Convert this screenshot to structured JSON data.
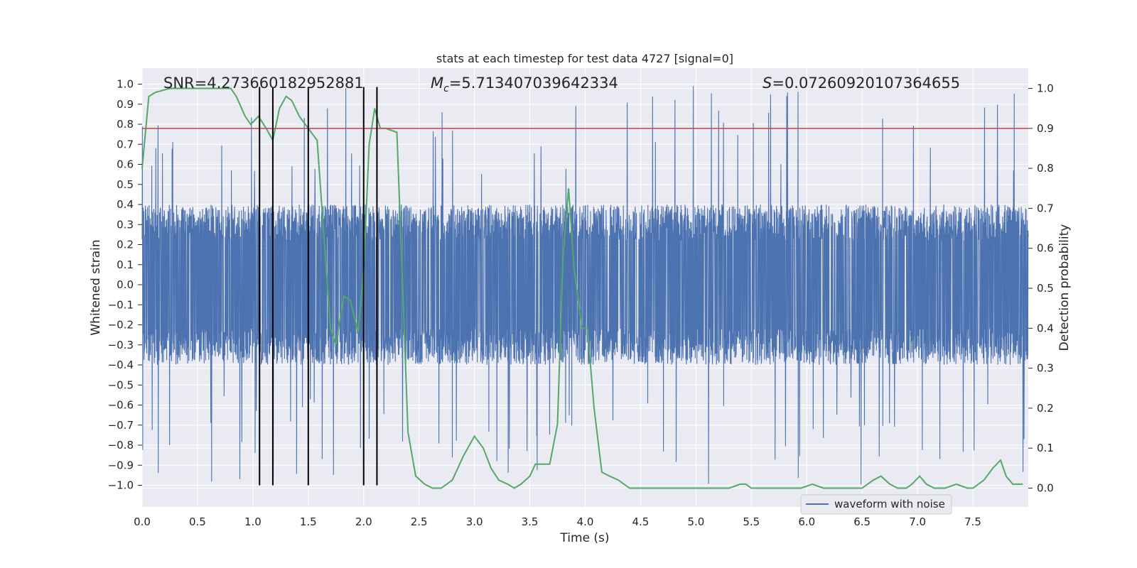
{
  "chart_data": {
    "type": "line",
    "title": "stats at each timestep for test data 4727 [signal=0]",
    "xlabel": "Time (s)",
    "ylabel": "Whitened strain",
    "y2label": "Detection probability",
    "xlim": [
      0.0,
      8.0
    ],
    "ylim": [
      -1.1,
      1.0
    ],
    "y2lim": [
      -0.04,
      1.02
    ],
    "xticks": [
      0.0,
      0.5,
      1.0,
      1.5,
      2.0,
      2.5,
      3.0,
      3.5,
      4.0,
      4.5,
      5.0,
      5.5,
      6.0,
      6.5,
      7.0,
      7.5
    ],
    "xtick_labels": [
      "0.0",
      "0.5",
      "1.0",
      "1.5",
      "2.0",
      "2.5",
      "3.0",
      "3.5",
      "4.0",
      "4.5",
      "5.0",
      "5.5",
      "6.0",
      "6.5",
      "7.0",
      "7.5"
    ],
    "yticks": [
      1.0,
      0.9,
      0.8,
      0.7,
      0.6,
      0.5,
      0.4,
      0.3,
      0.2,
      0.1,
      0.0,
      -0.1,
      -0.2,
      -0.3,
      -0.4,
      -0.5,
      -0.6,
      -0.7,
      -0.8,
      -0.9,
      -1.0
    ],
    "ytick_labels": [
      "1.0",
      "0.9",
      "0.8",
      "0.7",
      "0.6",
      "0.5",
      "0.4",
      "0.3",
      "0.2",
      "0.1",
      "0.0",
      "−0.1",
      "−0.2",
      "−0.3",
      "−0.4",
      "−0.5",
      "−0.6",
      "−0.7",
      "−0.8",
      "−0.9",
      "−1.0"
    ],
    "y2ticks": [
      1.0,
      0.9,
      0.8,
      0.7,
      0.6,
      0.5,
      0.4,
      0.3,
      0.2,
      0.1,
      0.0
    ],
    "y2tick_labels": [
      "1.0",
      "0.9",
      "0.8",
      "0.7",
      "0.6",
      "0.5",
      "0.4",
      "0.3",
      "0.2",
      "0.1",
      "0.0"
    ],
    "annotations": {
      "snr": "SNR=4.273660182952881",
      "mc_symbol": "M",
      "mc_sub": "c",
      "mc_value": "=5.713407039642334",
      "s_symbol": "S",
      "s_value": "=0.07260920107364655"
    },
    "threshold": {
      "axis": "y2",
      "value": 0.9,
      "color": "#c44e52"
    },
    "vlines": [
      1.06,
      1.18,
      1.5,
      2.0,
      2.12
    ],
    "vline_range": [
      -1.0,
      1.0
    ],
    "legend": {
      "label": "waveform with noise",
      "position": "bottom-right"
    },
    "series": [
      {
        "name": "waveform with noise",
        "axis": "y",
        "color": "#4c72b0",
        "style": "dense noise, envelope about ±0.4 with spikes to about ±1.0",
        "envelope": 0.4,
        "peak": 1.0
      },
      {
        "name": "detection probability",
        "axis": "y2",
        "color": "#55a868",
        "x": [
          0.0,
          0.06,
          0.12,
          0.25,
          0.5,
          0.8,
          0.85,
          0.93,
          0.98,
          1.05,
          1.12,
          1.18,
          1.24,
          1.3,
          1.35,
          1.42,
          1.5,
          1.58,
          1.7,
          1.75,
          1.82,
          1.88,
          1.95,
          2.0,
          2.05,
          2.1,
          2.15,
          2.2,
          2.3,
          2.35,
          2.4,
          2.47,
          2.55,
          2.62,
          2.7,
          2.8,
          2.9,
          3.0,
          3.08,
          3.15,
          3.22,
          3.3,
          3.36,
          3.42,
          3.5,
          3.55,
          3.62,
          3.68,
          3.75,
          3.8,
          3.85,
          3.9,
          3.97,
          4.02,
          4.08,
          4.15,
          4.22,
          4.3,
          4.4,
          4.6,
          4.8,
          5.0,
          5.3,
          5.4,
          5.45,
          5.5,
          5.6,
          5.7,
          5.8,
          5.95,
          6.05,
          6.15,
          6.25,
          6.5,
          6.6,
          6.67,
          6.75,
          6.82,
          6.9,
          6.95,
          7.02,
          7.08,
          7.15,
          7.25,
          7.35,
          7.45,
          7.5,
          7.6,
          7.68,
          7.75,
          7.8,
          7.86,
          7.95
        ],
        "values": [
          0.8,
          0.98,
          0.99,
          1.0,
          1.0,
          1.0,
          0.98,
          0.93,
          0.91,
          0.93,
          0.9,
          0.87,
          0.95,
          0.98,
          0.97,
          0.93,
          0.9,
          0.87,
          0.4,
          0.36,
          0.48,
          0.47,
          0.39,
          0.55,
          0.86,
          0.95,
          0.9,
          0.9,
          0.89,
          0.52,
          0.14,
          0.03,
          0.01,
          0.0,
          0.0,
          0.02,
          0.08,
          0.13,
          0.1,
          0.05,
          0.02,
          0.01,
          0.0,
          0.01,
          0.03,
          0.06,
          0.06,
          0.06,
          0.16,
          0.58,
          0.75,
          0.55,
          0.4,
          0.4,
          0.2,
          0.04,
          0.03,
          0.02,
          0.0,
          0.0,
          0.0,
          0.0,
          0.0,
          0.01,
          0.01,
          0.0,
          0.0,
          0.0,
          0.0,
          0.0,
          0.01,
          0.0,
          0.0,
          0.0,
          0.02,
          0.03,
          0.01,
          0.0,
          0.0,
          0.01,
          0.03,
          0.01,
          0.0,
          0.0,
          0.01,
          0.0,
          0.0,
          0.02,
          0.05,
          0.07,
          0.03,
          0.01,
          0.01
        ]
      }
    ],
    "grid": true
  }
}
